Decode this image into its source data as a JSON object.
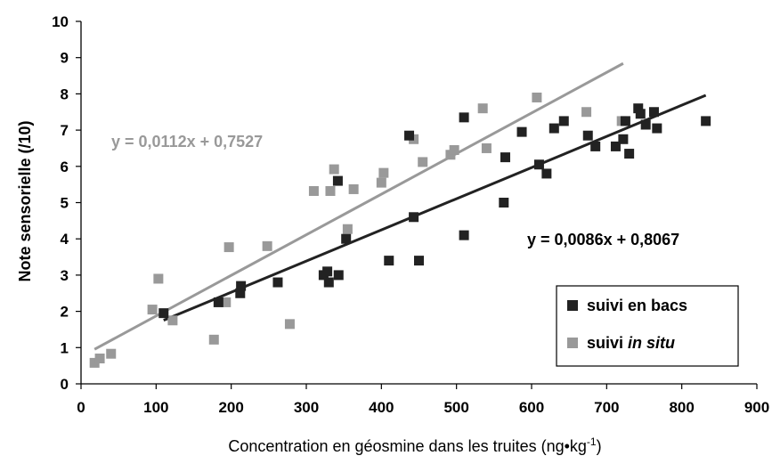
{
  "chart_data": {
    "type": "scatter",
    "xlabel_main": "Concentration en géosmine dans les truites (ng•kg",
    "xlabel_sup": "-1",
    "xlabel_end": ")",
    "ylabel": "Note sensorielle (/10)",
    "xlim": [
      0,
      900
    ],
    "ylim": [
      0,
      10
    ],
    "xticks": [
      "0",
      "100",
      "200",
      "300",
      "400",
      "500",
      "600",
      "700",
      "800",
      "900"
    ],
    "yticks": [
      "0",
      "1",
      "2",
      "3",
      "4",
      "5",
      "6",
      "7",
      "8",
      "9",
      "10"
    ],
    "grid": false,
    "legend_position": "bottom-right",
    "series": [
      {
        "name": "suivi en bacs",
        "name_parts": [
          "suivi en bacs"
        ],
        "color": "#222222",
        "trendline": {
          "label": "y = 0,0086x + 0,8067",
          "slope": 0.0086,
          "intercept": 0.8067,
          "x_range": [
            110,
            832
          ]
        },
        "points": [
          [
            110,
            1.95
          ],
          [
            183,
            2.25
          ],
          [
            212,
            2.5
          ],
          [
            213,
            2.7
          ],
          [
            262,
            2.8
          ],
          [
            323,
            3.0
          ],
          [
            328,
            3.1
          ],
          [
            330,
            2.8
          ],
          [
            343,
            3.0
          ],
          [
            342,
            5.6
          ],
          [
            353,
            4.0
          ],
          [
            410,
            3.4
          ],
          [
            437,
            6.85
          ],
          [
            443,
            4.6
          ],
          [
            450,
            3.4
          ],
          [
            510,
            4.1
          ],
          [
            510,
            7.35
          ],
          [
            563,
            5.0
          ],
          [
            565,
            6.25
          ],
          [
            587,
            6.95
          ],
          [
            610,
            6.05
          ],
          [
            620,
            5.8
          ],
          [
            630,
            7.05
          ],
          [
            643,
            7.25
          ],
          [
            675,
            6.85
          ],
          [
            685,
            6.55
          ],
          [
            712,
            6.55
          ],
          [
            722,
            6.75
          ],
          [
            725,
            7.25
          ],
          [
            730,
            6.35
          ],
          [
            742,
            7.6
          ],
          [
            745,
            7.45
          ],
          [
            752,
            7.15
          ],
          [
            763,
            7.5
          ],
          [
            767,
            7.05
          ],
          [
            832,
            7.25
          ]
        ]
      },
      {
        "name": "suivi in situ",
        "name_parts": [
          "suivi ",
          "in situ"
        ],
        "color": "#999999",
        "trendline": {
          "label": "y = 0,0112x + 0,7527",
          "slope": 0.0112,
          "intercept": 0.7527,
          "x_range": [
            18,
            722
          ]
        },
        "points": [
          [
            18,
            0.58
          ],
          [
            25,
            0.7
          ],
          [
            40,
            0.83
          ],
          [
            95,
            2.05
          ],
          [
            103,
            2.9
          ],
          [
            122,
            1.75
          ],
          [
            177,
            1.22
          ],
          [
            193,
            2.25
          ],
          [
            197,
            3.77
          ],
          [
            248,
            3.8
          ],
          [
            278,
            1.65
          ],
          [
            310,
            5.32
          ],
          [
            332,
            5.32
          ],
          [
            337,
            5.92
          ],
          [
            355,
            4.27
          ],
          [
            363,
            5.37
          ],
          [
            400,
            5.55
          ],
          [
            403,
            5.82
          ],
          [
            443,
            6.75
          ],
          [
            455,
            6.12
          ],
          [
            492,
            6.32
          ],
          [
            497,
            6.45
          ],
          [
            535,
            7.6
          ],
          [
            540,
            6.5
          ],
          [
            607,
            7.9
          ],
          [
            673,
            7.5
          ],
          [
            720,
            7.25
          ]
        ]
      }
    ]
  }
}
